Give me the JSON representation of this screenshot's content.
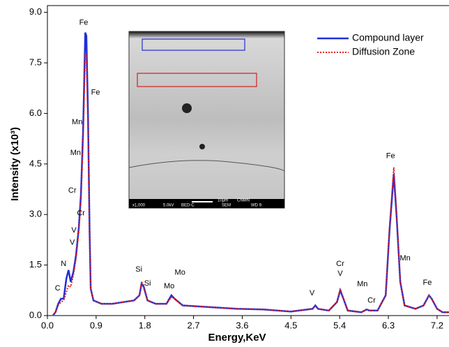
{
  "chart_data": {
    "type": "line",
    "x_label": "Energy,KeV",
    "y_label": "Intensity (x10³)",
    "xlim": [
      0,
      7.42
    ],
    "ylim": [
      0,
      9.2
    ],
    "xticks": [
      {
        "value": 0,
        "label": "0.0"
      },
      0.9,
      1.8,
      2.7,
      3.6,
      4.5,
      5.4,
      6.3,
      7.2
    ],
    "yticks": [
      {
        "value": 0,
        "label": "0.0"
      },
      1.5,
      {
        "value": 3,
        "label": "3.0"
      },
      4.5,
      {
        "value": 6,
        "label": "6.0"
      },
      7.5,
      {
        "value": 9,
        "label": "9.0"
      }
    ],
    "legend": "upper right",
    "x": [
      0.1,
      0.15,
      0.2,
      0.25,
      0.3,
      0.35,
      0.39,
      0.43,
      0.48,
      0.53,
      0.58,
      0.62,
      0.66,
      0.7,
      0.72,
      0.75,
      0.78,
      0.8,
      0.85,
      1.0,
      1.2,
      1.4,
      1.6,
      1.7,
      1.74,
      1.78,
      1.85,
      2.0,
      2.2,
      2.29,
      2.35,
      2.5,
      3.0,
      3.5,
      4.0,
      4.5,
      4.9,
      4.95,
      5.0,
      5.2,
      5.35,
      5.41,
      5.47,
      5.55,
      5.8,
      5.9,
      5.95,
      6.1,
      6.25,
      6.32,
      6.4,
      6.45,
      6.52,
      6.6,
      6.8,
      6.95,
      7.05,
      7.1,
      7.2,
      7.3,
      7.42
    ],
    "series": [
      {
        "name": "Compound layer",
        "color": "#1f2fd6",
        "style": "solid",
        "values": [
          0.0,
          0.1,
          0.35,
          0.5,
          0.5,
          1.1,
          1.35,
          1.0,
          1.3,
          1.8,
          2.6,
          3.6,
          5.5,
          8.4,
          8.3,
          6.0,
          2.5,
          0.8,
          0.45,
          0.35,
          0.35,
          0.4,
          0.45,
          0.6,
          0.95,
          0.85,
          0.45,
          0.35,
          0.35,
          0.6,
          0.5,
          0.3,
          0.25,
          0.2,
          0.18,
          0.12,
          0.2,
          0.3,
          0.2,
          0.15,
          0.4,
          0.75,
          0.5,
          0.15,
          0.1,
          0.18,
          0.15,
          0.15,
          0.6,
          2.5,
          4.2,
          3.0,
          1.0,
          0.3,
          0.2,
          0.3,
          0.6,
          0.5,
          0.2,
          0.1,
          0.1
        ]
      },
      {
        "name": "Diffusion Zone",
        "color": "#e02020",
        "style": "dotted",
        "values": [
          0.0,
          0.1,
          0.3,
          0.4,
          0.45,
          0.7,
          0.9,
          0.85,
          1.2,
          1.7,
          2.5,
          3.4,
          5.2,
          7.8,
          7.7,
          5.6,
          2.3,
          0.8,
          0.45,
          0.35,
          0.35,
          0.4,
          0.45,
          0.6,
          1.0,
          0.9,
          0.45,
          0.35,
          0.35,
          0.55,
          0.5,
          0.3,
          0.25,
          0.2,
          0.18,
          0.12,
          0.2,
          0.28,
          0.2,
          0.15,
          0.4,
          0.8,
          0.5,
          0.15,
          0.1,
          0.18,
          0.15,
          0.15,
          0.6,
          2.6,
          4.4,
          3.1,
          1.0,
          0.3,
          0.2,
          0.3,
          0.6,
          0.5,
          0.2,
          0.1,
          0.1
        ]
      }
    ],
    "annotations": [
      {
        "text": "Fe",
        "x": 0.67,
        "y": 8.69
      },
      {
        "text": "Fe",
        "x": 0.89,
        "y": 6.62
      },
      {
        "text": "Mn",
        "x": 0.55,
        "y": 5.74
      },
      {
        "text": "Mn",
        "x": 0.52,
        "y": 4.83
      },
      {
        "text": "Cr",
        "x": 0.46,
        "y": 3.71
      },
      {
        "text": "Cr",
        "x": 0.62,
        "y": 3.03
      },
      {
        "text": "V",
        "x": 0.49,
        "y": 2.53
      },
      {
        "text": "V",
        "x": 0.46,
        "y": 2.16
      },
      {
        "text": "N",
        "x": 0.3,
        "y": 1.53
      },
      {
        "text": "C",
        "x": 0.19,
        "y": 0.81
      },
      {
        "text": "Si",
        "x": 1.69,
        "y": 1.37
      },
      {
        "text": "Si",
        "x": 1.85,
        "y": 0.95
      },
      {
        "text": "Mo",
        "x": 2.45,
        "y": 1.27
      },
      {
        "text": "Mo",
        "x": 2.25,
        "y": 0.87
      },
      {
        "text": "V",
        "x": 4.89,
        "y": 0.66
      },
      {
        "text": "Cr",
        "x": 5.41,
        "y": 1.53
      },
      {
        "text": "V",
        "x": 5.41,
        "y": 1.24
      },
      {
        "text": "Mn",
        "x": 5.82,
        "y": 0.93
      },
      {
        "text": "Cr",
        "x": 5.99,
        "y": 0.44
      },
      {
        "text": "Fe",
        "x": 6.34,
        "y": 4.73
      },
      {
        "text": "Mn",
        "x": 6.61,
        "y": 1.7
      },
      {
        "text": "Fe",
        "x": 7.02,
        "y": 0.97
      }
    ],
    "inset": {
      "scale_bar": "10µm",
      "lab": "CNMN",
      "magnification": "x1,000",
      "voltage": "5.0kV",
      "detector": "BED-C",
      "mode": "SEM",
      "wd": "WD 9."
    }
  }
}
